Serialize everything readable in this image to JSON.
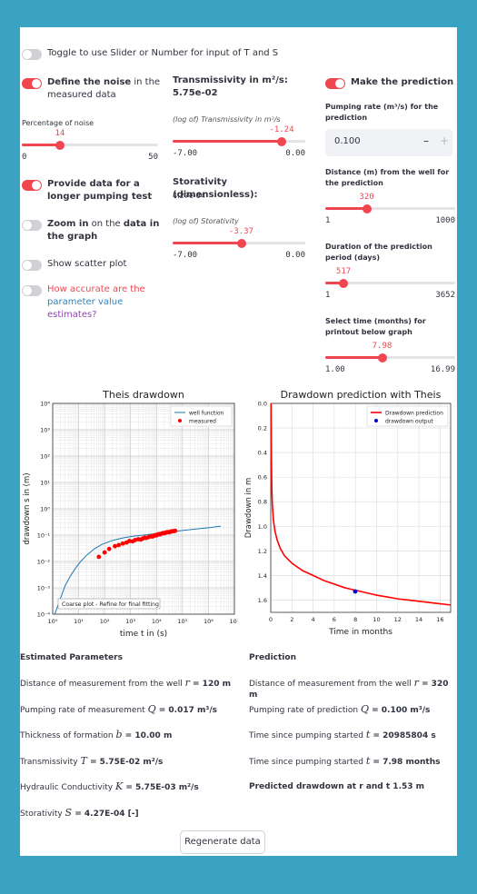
{
  "toggles": {
    "slider_toggle": "Toggle to use Slider or Number for input of T and S",
    "noise": {
      "label_bold": "Define the noise",
      "label_rest": " in the measured data"
    },
    "longer": "Provide data for a longer pumping test",
    "zoom": {
      "bold1": "Zoom in",
      "mid": " on the ",
      "bold2": "data in the graph"
    },
    "scatter": "Show scatter plot",
    "accuracy": {
      "a": "How accurate are the",
      "b": "parameter value",
      "c": "estimates?"
    },
    "prediction": "Make the prediction"
  },
  "noise": {
    "label": "Percentage of noise",
    "value": "14",
    "fraction": 0.28,
    "min": "0",
    "max": "50"
  },
  "transmissivity": {
    "title": "Transmissivity in m²/s: 5.75e-02",
    "slider_label": "(log of) Transmissivity in m²/s",
    "value": "-1.24",
    "fraction": 0.823,
    "min": "-7.00",
    "max": "0.00"
  },
  "storativity": {
    "title": "Storativity (dimensionless):",
    "value_text": "4.27e-04",
    "slider_label": "(log of) Storativity",
    "value": "-3.37",
    "fraction": 0.518,
    "min": "-7.00",
    "max": "0.00"
  },
  "pumping": {
    "label": "Pumping rate (m³/s) for the prediction",
    "value": "0.100",
    "minus": "–",
    "plus": "+"
  },
  "distance": {
    "label": "Distance (m) from the well for the prediction",
    "value": "320",
    "fraction": 0.319,
    "min": "1",
    "max": "1000"
  },
  "duration": {
    "label": "Duration of the prediction period (days)",
    "value": "517",
    "fraction": 0.141,
    "min": "1",
    "max": "3652"
  },
  "month": {
    "label": "Select time (months) for printout below graph",
    "value": "7.98",
    "fraction": 0.438,
    "min": "1.00",
    "max": "16.99"
  },
  "theis_chart": {
    "title": "Theis drawdown",
    "ylabel": "drawdown s in (m)",
    "xlabel": "time t in (s)",
    "legend": [
      "well function",
      "measured"
    ],
    "annotation": "Coarse plot - Refine for final fitting",
    "xticks": [
      "10⁰",
      "10¹",
      "10²",
      "10³",
      "10⁴",
      "10⁵",
      "10⁶",
      "10⁷"
    ],
    "yticks": [
      "10⁻⁴",
      "10⁻³",
      "10⁻²",
      "10⁻¹",
      "10⁰",
      "10¹",
      "10²",
      "10³",
      "10⁴"
    ]
  },
  "prediction_chart": {
    "title": "Drawdown prediction with Theis",
    "ylabel": "Drawdown in m",
    "xlabel": "Time in months",
    "legend": [
      "Drawdown prediction",
      "drawdown output"
    ],
    "xticks": [
      "0",
      "2",
      "4",
      "6",
      "8",
      "10",
      "12",
      "14",
      "16"
    ],
    "yticks": [
      "0.0",
      "0.2",
      "0.4",
      "0.6",
      "0.8",
      "1.0",
      "1.2",
      "1.4",
      "1.6"
    ]
  },
  "chart_data": [
    {
      "type": "scatter",
      "title": "Theis drawdown",
      "xlabel": "time t in (s)",
      "ylabel": "drawdown s in (m)",
      "xscale": "log",
      "yscale": "log",
      "xlim": [
        1,
        10000000
      ],
      "ylim": [
        0.0001,
        10000
      ],
      "grid": true,
      "legend": "top-right",
      "series": [
        {
          "name": "well function",
          "x": [
            1.2,
            2,
            3,
            5,
            8,
            12,
            20,
            40,
            80,
            200,
            500,
            1000,
            3000,
            10000,
            30000,
            100000,
            300000,
            1000000,
            3000000
          ],
          "y": [
            0.0001,
            0.0004,
            0.0012,
            0.003,
            0.006,
            0.01,
            0.017,
            0.03,
            0.045,
            0.063,
            0.078,
            0.088,
            0.1,
            0.115,
            0.13,
            0.15,
            0.17,
            0.19,
            0.22
          ]
        },
        {
          "name": "measured",
          "x": [
            60,
            100,
            150,
            250,
            350,
            500,
            700,
            900,
            1200,
            1500,
            2000,
            2500,
            3000,
            3500,
            4000,
            5000,
            6000,
            7000,
            8000,
            9000,
            10000,
            11000,
            12500,
            14000,
            16000,
            18000,
            20000,
            23000,
            26000,
            30000,
            33000,
            37000,
            41000,
            46000,
            52000
          ],
          "y": [
            0.015,
            0.022,
            0.03,
            0.038,
            0.042,
            0.048,
            0.052,
            0.06,
            0.058,
            0.065,
            0.07,
            0.068,
            0.075,
            0.08,
            0.078,
            0.085,
            0.09,
            0.088,
            0.095,
            0.1,
            0.098,
            0.105,
            0.11,
            0.107,
            0.115,
            0.12,
            0.118,
            0.125,
            0.13,
            0.128,
            0.133,
            0.138,
            0.14,
            0.142,
            0.145
          ]
        }
      ]
    },
    {
      "type": "line",
      "title": "Drawdown prediction with Theis",
      "xlabel": "Time in months",
      "ylabel": "Drawdown in m",
      "xlim": [
        0,
        17
      ],
      "ylim": [
        1.7,
        0.0
      ],
      "grid": true,
      "legend": "top-right",
      "series": [
        {
          "name": "Drawdown prediction",
          "x": [
            0.03,
            0.06,
            0.1,
            0.15,
            0.25,
            0.4,
            0.6,
            0.9,
            1.3,
            2,
            3,
            4,
            5,
            6,
            7,
            8,
            9,
            10,
            11,
            12,
            13,
            14,
            15,
            16,
            17
          ],
          "y": [
            0.0,
            0.45,
            0.7,
            0.82,
            0.95,
            1.04,
            1.11,
            1.18,
            1.24,
            1.3,
            1.36,
            1.4,
            1.44,
            1.47,
            1.5,
            1.52,
            1.54,
            1.56,
            1.575,
            1.59,
            1.6,
            1.61,
            1.62,
            1.63,
            1.64
          ]
        },
        {
          "name": "drawdown output",
          "x": [
            7.98
          ],
          "y": [
            1.53
          ]
        }
      ]
    }
  ],
  "results": {
    "left_title": "Estimated Parameters",
    "right_title": "Prediction",
    "left": [
      {
        "pre": "Distance of measurement from the well ",
        "var": "r",
        "val": " = 120 m"
      },
      {
        "pre": "Pumping rate of measurement ",
        "var": "Q",
        "val": " = 0.017 m³/s"
      },
      {
        "pre": "Thickness of formation ",
        "var": "b",
        "val": " = 10.00 m"
      },
      {
        "pre": "Transmissivity ",
        "var": "T",
        "val": " = 5.75E-02 m²/s"
      },
      {
        "pre": "Hydraulic Conductivity ",
        "var": "K",
        "val": " = 5.75E-03 m²/s"
      },
      {
        "pre": "Storativity ",
        "var": "S",
        "val": " = 4.27E-04 [-]"
      }
    ],
    "right": [
      {
        "pre": "Distance of measurement from the well ",
        "var": "r",
        "val": " = 320 m"
      },
      {
        "pre": "Pumping rate of prediction ",
        "var": "Q",
        "val": " = 0.100 m³/s"
      },
      {
        "pre": "Time since pumping started ",
        "var": "t",
        "val": " = 20985804 s"
      },
      {
        "pre": "Time since pumping started ",
        "var": "t",
        "val": " = 7.98 months"
      },
      {
        "pre": "Predicted drawdown at r and t 1.53 m",
        "var": "",
        "val": ""
      }
    ]
  },
  "regenerate": "Regenerate data",
  "colors": {
    "accent": "#ef4650",
    "line": "#1f77b4",
    "pred": "#ff0000",
    "dot": "#0000cc"
  }
}
